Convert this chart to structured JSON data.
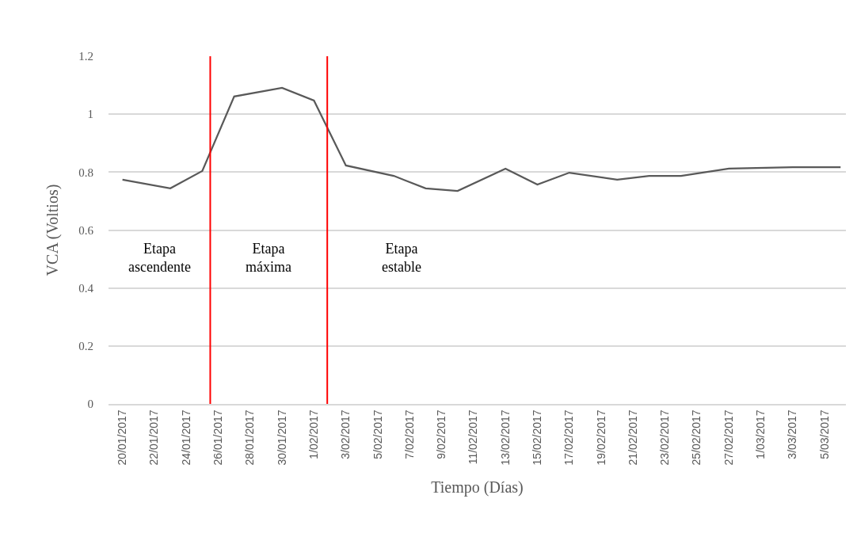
{
  "chart_data": {
    "type": "line",
    "xlabel": "Tiempo (Días)",
    "ylabel": "VCA (Voltios)",
    "x": [
      "2017-01-20",
      "2017-01-23",
      "2017-01-25",
      "2017-01-27",
      "2017-01-30",
      "2017-02-01",
      "2017-02-03",
      "2017-02-06",
      "2017-02-08",
      "2017-02-10",
      "2017-02-13",
      "2017-02-15",
      "2017-02-17",
      "2017-02-20",
      "2017-02-22",
      "2017-02-24",
      "2017-02-27",
      "2017-03-03",
      "2017-03-06"
    ],
    "series": [
      {
        "color": "#595959",
        "values": [
          0.774,
          0.744,
          0.804,
          1.061,
          1.091,
          1.047,
          0.823,
          0.787,
          0.744,
          0.735,
          0.812,
          0.757,
          0.798,
          0.774,
          0.787,
          0.787,
          0.812,
          0.817,
          0.817
        ]
      }
    ],
    "xlim": [
      "2017-01-19T03:00",
      "2017-03-06T08:00"
    ],
    "xticks": [
      {
        "value": "2017-01-20",
        "label": "20/01/2017"
      },
      {
        "value": "2017-01-22",
        "label": "22/01/2017"
      },
      {
        "value": "2017-01-24",
        "label": "24/01/2017"
      },
      {
        "value": "2017-01-26",
        "label": "26/01/2017"
      },
      {
        "value": "2017-01-28",
        "label": "28/01/2017"
      },
      {
        "value": "2017-01-30",
        "label": "30/01/2017"
      },
      {
        "value": "2017-02-01",
        "label": "1/02/2017"
      },
      {
        "value": "2017-02-03",
        "label": "3/02/2017"
      },
      {
        "value": "2017-02-05",
        "label": "5/02/2017"
      },
      {
        "value": "2017-02-07",
        "label": "7/02/2017"
      },
      {
        "value": "2017-02-09",
        "label": "9/02/2017"
      },
      {
        "value": "2017-02-11",
        "label": "11/02/2017"
      },
      {
        "value": "2017-02-13",
        "label": "13/02/2017"
      },
      {
        "value": "2017-02-15",
        "label": "15/02/2017"
      },
      {
        "value": "2017-02-17",
        "label": "17/02/2017"
      },
      {
        "value": "2017-02-19",
        "label": "19/02/2017"
      },
      {
        "value": "2017-02-21",
        "label": "21/02/2017"
      },
      {
        "value": "2017-02-23",
        "label": "23/02/2017"
      },
      {
        "value": "2017-02-25",
        "label": "25/02/2017"
      },
      {
        "value": "2017-02-27",
        "label": "27/02/2017"
      },
      {
        "value": "2017-03-01",
        "label": "1/03/2017"
      },
      {
        "value": "2017-03-03",
        "label": "3/03/2017"
      },
      {
        "value": "2017-03-05",
        "label": "5/03/2017"
      }
    ],
    "ylim": [
      0,
      1.2
    ],
    "yticks": [
      0,
      0.2,
      0.4,
      0.6,
      0.8,
      1,
      1.2
    ],
    "grid": "y",
    "marker": "none",
    "line_style": "solid",
    "ref_lines": [
      {
        "axis": "x",
        "value": "2017-01-25T12:00",
        "color": "#ff0000"
      },
      {
        "axis": "x",
        "value": "2017-02-01T20:00",
        "color": "#ff0000"
      }
    ],
    "annotations": [
      "Etapa\nascendente",
      "Etapa\nmáxima",
      "Etapa\nestable"
    ]
  }
}
